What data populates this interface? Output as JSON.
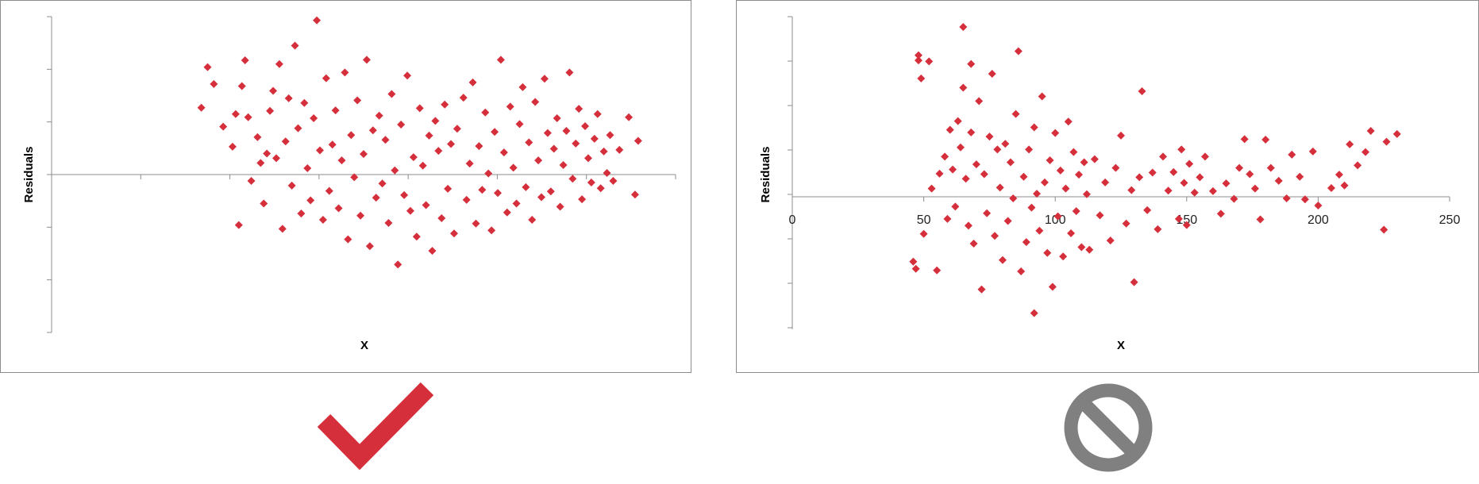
{
  "colors": {
    "marker": "#d62f3c",
    "axis": "#8c8c8c",
    "check": "#d62f3c",
    "no_sign": "#808080",
    "frame": "#8c8c8c"
  },
  "icons": {
    "good": "check-mark-icon",
    "bad": "no-entry-icon"
  },
  "chart_data": [
    {
      "type": "scatter",
      "title": "",
      "xlabel": "X",
      "ylabel": "Residuals",
      "x_tick_labels": false,
      "y_tick_labels": false,
      "grid": false,
      "legend": "none",
      "xlim": [
        0,
        100
      ],
      "ylim": [
        -3,
        3
      ],
      "marker": "diamond",
      "series": [
        {
          "points": [
            [
              24.0,
              1.27
            ],
            [
              25.0,
              2.04
            ],
            [
              26.0,
              1.72
            ],
            [
              27.5,
              0.91
            ],
            [
              29.0,
              0.53
            ],
            [
              29.5,
              1.15
            ],
            [
              30.0,
              -0.96
            ],
            [
              30.5,
              1.68
            ],
            [
              31.0,
              2.17
            ],
            [
              31.5,
              1.09
            ],
            [
              32.0,
              -0.12
            ],
            [
              33.0,
              0.71
            ],
            [
              33.5,
              0.22
            ],
            [
              34.0,
              -0.55
            ],
            [
              34.5,
              0.4
            ],
            [
              35.0,
              1.21
            ],
            [
              35.5,
              1.59
            ],
            [
              36.0,
              0.31
            ],
            [
              36.5,
              2.1
            ],
            [
              37.0,
              -1.03
            ],
            [
              37.5,
              0.63
            ],
            [
              38.0,
              1.45
            ],
            [
              38.5,
              -0.21
            ],
            [
              39.0,
              2.45
            ],
            [
              39.5,
              0.88
            ],
            [
              40.0,
              -0.74
            ],
            [
              40.5,
              1.36
            ],
            [
              41.0,
              0.12
            ],
            [
              41.5,
              -0.49
            ],
            [
              42.0,
              1.07
            ],
            [
              42.5,
              2.93
            ],
            [
              43.0,
              0.46
            ],
            [
              43.5,
              -0.86
            ],
            [
              44.0,
              1.83
            ],
            [
              44.5,
              -0.31
            ],
            [
              45.0,
              0.57
            ],
            [
              45.5,
              1.22
            ],
            [
              46.0,
              -0.64
            ],
            [
              46.5,
              0.27
            ],
            [
              47.0,
              1.94
            ],
            [
              47.5,
              -1.23
            ],
            [
              48.0,
              0.75
            ],
            [
              48.5,
              -0.05
            ],
            [
              49.0,
              1.41
            ],
            [
              49.5,
              -0.78
            ],
            [
              50.0,
              0.39
            ],
            [
              50.5,
              2.18
            ],
            [
              51.0,
              -1.36
            ],
            [
              51.5,
              0.84
            ],
            [
              52.0,
              -0.44
            ],
            [
              52.5,
              1.12
            ],
            [
              53.0,
              -0.17
            ],
            [
              53.5,
              0.66
            ],
            [
              54.0,
              -0.92
            ],
            [
              54.5,
              1.53
            ],
            [
              55.0,
              0.08
            ],
            [
              55.5,
              -1.71
            ],
            [
              56.0,
              0.95
            ],
            [
              56.5,
              -0.39
            ],
            [
              57.0,
              1.88
            ],
            [
              57.5,
              -0.69
            ],
            [
              58.0,
              0.33
            ],
            [
              58.5,
              -1.18
            ],
            [
              59.0,
              1.26
            ],
            [
              59.5,
              0.17
            ],
            [
              60.0,
              -0.58
            ],
            [
              60.5,
              0.74
            ],
            [
              61.0,
              -1.45
            ],
            [
              61.5,
              1.02
            ],
            [
              62.0,
              0.45
            ],
            [
              62.5,
              -0.83
            ],
            [
              63.0,
              1.33
            ],
            [
              63.5,
              -0.27
            ],
            [
              64.0,
              0.58
            ],
            [
              64.5,
              -1.12
            ],
            [
              65.0,
              0.87
            ],
            [
              66.0,
              1.46
            ],
            [
              66.5,
              -0.48
            ],
            [
              67.0,
              0.21
            ],
            [
              67.5,
              1.75
            ],
            [
              68.0,
              -0.93
            ],
            [
              68.5,
              0.54
            ],
            [
              69.0,
              -0.29
            ],
            [
              69.5,
              1.18
            ],
            [
              70.0,
              0.02
            ],
            [
              70.5,
              -1.06
            ],
            [
              71.0,
              0.81
            ],
            [
              71.5,
              -0.35
            ],
            [
              72.0,
              2.18
            ],
            [
              72.5,
              0.42
            ],
            [
              73.0,
              -0.72
            ],
            [
              73.5,
              1.29
            ],
            [
              74.0,
              0.13
            ],
            [
              74.5,
              -0.55
            ],
            [
              75.0,
              0.96
            ],
            [
              75.5,
              1.66
            ],
            [
              76.0,
              -0.24
            ],
            [
              76.5,
              0.61
            ],
            [
              77.0,
              -0.86
            ],
            [
              77.5,
              1.38
            ],
            [
              78.0,
              0.27
            ],
            [
              78.5,
              -0.43
            ],
            [
              79.0,
              1.82
            ],
            [
              79.5,
              0.79
            ],
            [
              80.0,
              -0.32
            ],
            [
              80.5,
              0.49
            ],
            [
              81.0,
              1.07
            ],
            [
              81.5,
              -0.61
            ],
            [
              82.0,
              0.18
            ],
            [
              82.5,
              0.83
            ],
            [
              83.0,
              1.94
            ],
            [
              83.5,
              -0.08
            ],
            [
              84.0,
              0.59
            ],
            [
              84.5,
              1.25
            ],
            [
              85.0,
              -0.47
            ],
            [
              85.5,
              0.92
            ],
            [
              86.0,
              0.31
            ],
            [
              86.5,
              -0.15
            ],
            [
              87.0,
              0.68
            ],
            [
              87.5,
              1.15
            ],
            [
              88.0,
              -0.26
            ],
            [
              88.5,
              0.44
            ],
            [
              89.0,
              0.03
            ],
            [
              89.5,
              0.75
            ],
            [
              90.0,
              -0.12
            ],
            [
              91.0,
              0.47
            ],
            [
              92.5,
              1.09
            ],
            [
              93.5,
              -0.38
            ],
            [
              94.0,
              0.64
            ]
          ]
        }
      ]
    },
    {
      "type": "scatter",
      "title": "",
      "xlabel": "X",
      "ylabel": "Residuals",
      "y_tick_labels": false,
      "grid": false,
      "legend": "none",
      "xlim": [
        0,
        250
      ],
      "xticks": [
        "0",
        "50",
        "100",
        "150",
        "200",
        "250"
      ],
      "ylim": [
        -3,
        3.5
      ],
      "marker": "diamond",
      "series": [
        {
          "points": [
            [
              46,
              -1.26
            ],
            [
              47,
              -1.4
            ],
            [
              48,
              2.75
            ],
            [
              48,
              2.65
            ],
            [
              49,
              2.3
            ],
            [
              50,
              -0.72
            ],
            [
              52,
              2.63
            ],
            [
              53,
              0.16
            ],
            [
              55,
              -1.43
            ],
            [
              56,
              0.45
            ],
            [
              58,
              0.78
            ],
            [
              59,
              -0.43
            ],
            [
              60,
              1.3
            ],
            [
              61,
              0.53
            ],
            [
              62,
              -0.19
            ],
            [
              63,
              1.47
            ],
            [
              64,
              0.96
            ],
            [
              65,
              3.3
            ],
            [
              65,
              2.12
            ],
            [
              66,
              0.35
            ],
            [
              67,
              -0.56
            ],
            [
              68,
              1.25
            ],
            [
              68,
              2.58
            ],
            [
              69,
              -0.91
            ],
            [
              70,
              0.63
            ],
            [
              71,
              1.86
            ],
            [
              72,
              -1.8
            ],
            [
              73,
              0.44
            ],
            [
              74,
              -0.32
            ],
            [
              75,
              1.17
            ],
            [
              76,
              2.39
            ],
            [
              77,
              -0.76
            ],
            [
              78,
              0.92
            ],
            [
              79,
              0.18
            ],
            [
              80,
              -1.23
            ],
            [
              81,
              1.03
            ],
            [
              82,
              -0.47
            ],
            [
              83,
              0.67
            ],
            [
              84,
              -0.03
            ],
            [
              85,
              1.61
            ],
            [
              86,
              2.83
            ],
            [
              87,
              -1.45
            ],
            [
              88,
              0.39
            ],
            [
              89,
              -0.88
            ],
            [
              90,
              0.92
            ],
            [
              91,
              -0.21
            ],
            [
              92,
              1.35
            ],
            [
              92,
              -2.26
            ],
            [
              93,
              0.06
            ],
            [
              94,
              -0.66
            ],
            [
              95,
              1.95
            ],
            [
              96,
              0.28
            ],
            [
              97,
              -1.09
            ],
            [
              98,
              0.71
            ],
            [
              99,
              -1.75
            ],
            [
              100,
              1.24
            ],
            [
              101,
              -0.38
            ],
            [
              102,
              0.51
            ],
            [
              103,
              -1.16
            ],
            [
              104,
              0.16
            ],
            [
              105,
              1.46
            ],
            [
              106,
              -0.71
            ],
            [
              107,
              0.87
            ],
            [
              108,
              -0.28
            ],
            [
              109,
              0.43
            ],
            [
              110,
              -0.98
            ],
            [
              111,
              0.67
            ],
            [
              112,
              0.05
            ],
            [
              113,
              -1.03
            ],
            [
              115,
              0.73
            ],
            [
              117,
              -0.36
            ],
            [
              119,
              0.28
            ],
            [
              121,
              -0.85
            ],
            [
              123,
              0.56
            ],
            [
              125,
              1.19
            ],
            [
              127,
              -0.52
            ],
            [
              129,
              0.13
            ],
            [
              130,
              -1.66
            ],
            [
              132,
              0.38
            ],
            [
              133,
              2.05
            ],
            [
              135,
              -0.26
            ],
            [
              137,
              0.47
            ],
            [
              139,
              -0.63
            ],
            [
              141,
              0.78
            ],
            [
              143,
              0.12
            ],
            [
              145,
              0.48
            ],
            [
              147,
              -0.43
            ],
            [
              148,
              0.92
            ],
            [
              149,
              0.27
            ],
            [
              150,
              -0.55
            ],
            [
              151,
              0.64
            ],
            [
              153,
              0.08
            ],
            [
              155,
              0.38
            ],
            [
              157,
              0.78
            ],
            [
              160,
              0.11
            ],
            [
              163,
              -0.33
            ],
            [
              165,
              0.26
            ],
            [
              168,
              -0.04
            ],
            [
              170,
              0.56
            ],
            [
              172,
              1.12
            ],
            [
              174,
              0.44
            ],
            [
              176,
              0.16
            ],
            [
              178,
              -0.44
            ],
            [
              180,
              1.11
            ],
            [
              182,
              0.56
            ],
            [
              185,
              0.31
            ],
            [
              188,
              -0.03
            ],
            [
              190,
              0.82
            ],
            [
              193,
              0.39
            ],
            [
              195,
              -0.05
            ],
            [
              198,
              0.88
            ],
            [
              200,
              -0.17
            ],
            [
              205,
              0.17
            ],
            [
              208,
              0.43
            ],
            [
              210,
              0.22
            ],
            [
              212,
              1.02
            ],
            [
              215,
              0.61
            ],
            [
              218,
              0.87
            ],
            [
              220,
              1.28
            ],
            [
              225,
              -0.64
            ],
            [
              226,
              1.07
            ],
            [
              230,
              1.22
            ]
          ]
        }
      ]
    }
  ]
}
